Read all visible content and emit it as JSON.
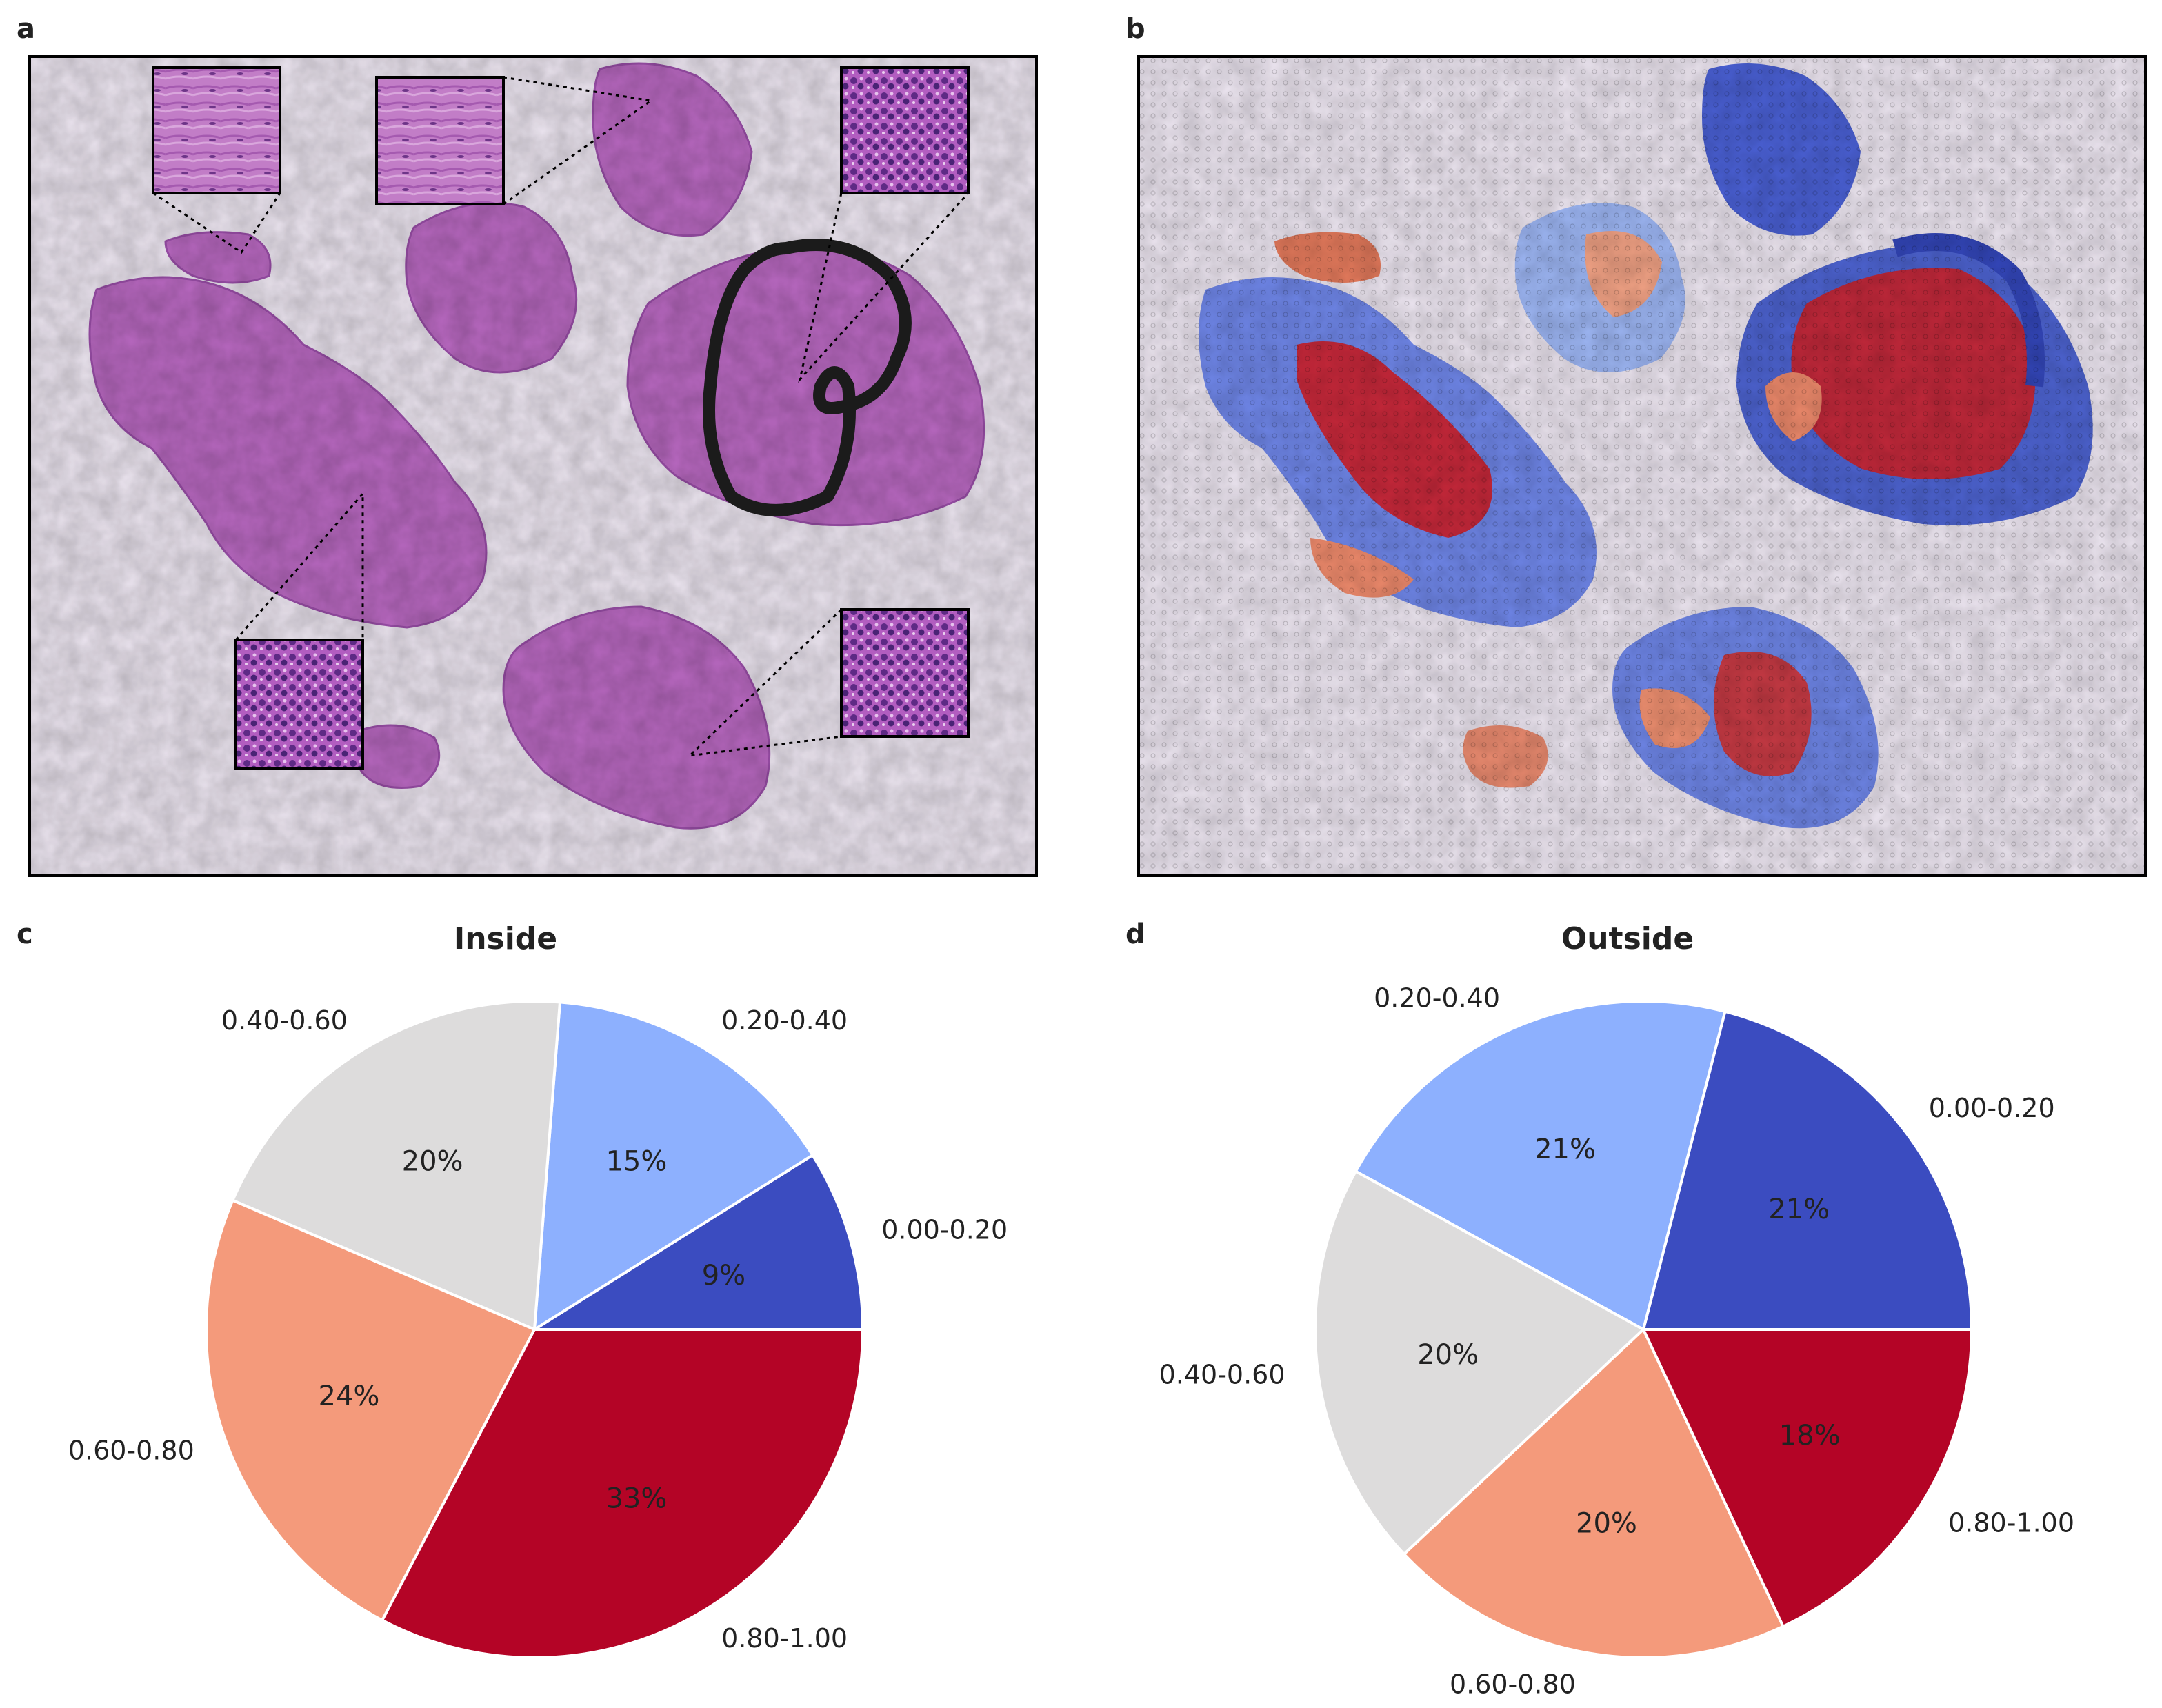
{
  "panels": {
    "a": "a",
    "b": "b",
    "c": "c",
    "d": "d"
  },
  "colors": {
    "0.00-0.20": "#3b4cc0",
    "0.20-0.40": "#8db0fe",
    "0.40-0.60": "#dddcdc",
    "0.60-0.80": "#f49a7b",
    "0.80-1.00": "#b40426"
  },
  "chart_data": [
    {
      "type": "pie",
      "title": "Inside",
      "labels": [
        "0.00-0.20",
        "0.20-0.40",
        "0.40-0.60",
        "0.60-0.80",
        "0.80-1.00"
      ],
      "values": [
        9,
        15,
        20,
        24,
        33
      ],
      "pct_labels": [
        "9%",
        "15%",
        "20%",
        "24%",
        "33%"
      ]
    },
    {
      "type": "pie",
      "title": "Outside",
      "labels": [
        "0.00-0.20",
        "0.20-0.40",
        "0.40-0.60",
        "0.60-0.80",
        "0.80-1.00"
      ],
      "values": [
        21,
        21,
        20,
        20,
        18
      ],
      "pct_labels": [
        "21%",
        "21%",
        "20%",
        "20%",
        "18%"
      ]
    }
  ]
}
